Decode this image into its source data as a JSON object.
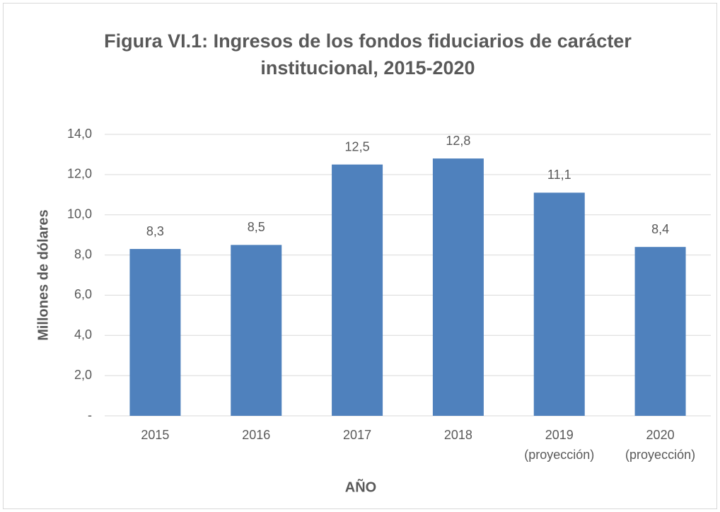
{
  "chart_data": {
    "type": "bar",
    "title": [
      "Figura VI.1: Ingresos de los fondos fiduciarios de carácter",
      "institucional, 2015-2020"
    ],
    "y_label": "Millones de dólares",
    "x_label": "AÑO",
    "categories": [
      [
        "2015"
      ],
      [
        "2016"
      ],
      [
        "2017"
      ],
      [
        "2018"
      ],
      [
        "2019",
        "(proyección)"
      ],
      [
        "2020",
        "(proyección)"
      ]
    ],
    "values": [
      8.3,
      8.5,
      12.5,
      12.8,
      11.1,
      8.4
    ],
    "value_labels": [
      "8,3",
      "8,5",
      "12,5",
      "12,8",
      "11,1",
      "8,4"
    ],
    "color": "#4f81bd",
    "ylim": [
      0,
      14
    ],
    "yticks": [
      {
        "value": 0,
        "label": "-"
      },
      {
        "value": 2,
        "label": "2,0"
      },
      {
        "value": 4,
        "label": "4,0"
      },
      {
        "value": 6,
        "label": "6,0"
      },
      {
        "value": 8,
        "label": "8,0"
      },
      {
        "value": 10,
        "label": "10,0"
      },
      {
        "value": 12,
        "label": "12,0"
      },
      {
        "value": 14,
        "label": "14,0"
      }
    ],
    "grid": true
  }
}
